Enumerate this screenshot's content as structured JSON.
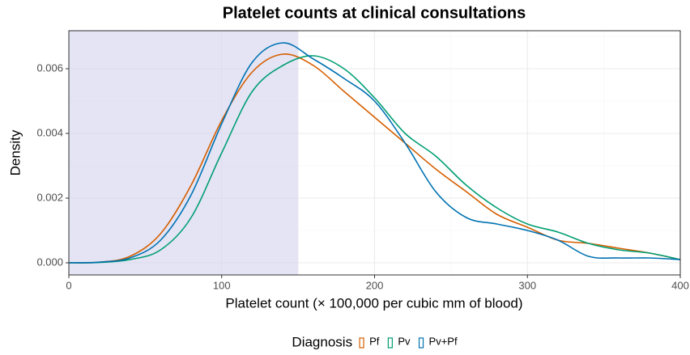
{
  "chart_data": {
    "type": "line",
    "title": "Platelet counts at clinical consultations",
    "x_label": "Platelet count (× 100,000 per cubic mm of blood)",
    "y_label": "Density",
    "legend_title": "Diagnosis",
    "legend_position": "bottom",
    "grid": true,
    "shaded_region": {
      "xmin": 0,
      "xmax": 150,
      "color": "#d6d6ee"
    },
    "xlim": [
      0,
      400
    ],
    "ylim": [
      -0.000375,
      0.007175
    ],
    "xticks": [
      0,
      100,
      200,
      300,
      400
    ],
    "yticks": [
      {
        "value": 0,
        "label": "0.000"
      },
      {
        "value": 0.002,
        "label": "0.002"
      },
      {
        "value": 0.004,
        "label": "0.004"
      },
      {
        "value": 0.006,
        "label": "0.006"
      }
    ],
    "x": [
      0,
      20,
      40,
      60,
      80,
      100,
      120,
      140,
      160,
      180,
      200,
      220,
      240,
      260,
      280,
      300,
      320,
      340,
      360,
      380,
      400
    ],
    "series": [
      {
        "name": "Pf",
        "color": "#D55E00",
        "values": [
          0,
          2e-05,
          0.0002,
          0.0009,
          0.0024,
          0.0044,
          0.0059,
          0.00645,
          0.0061,
          0.0053,
          0.0045,
          0.0037,
          0.0029,
          0.0022,
          0.0015,
          0.0011,
          0.0007,
          0.0006,
          0.00045,
          0.0003,
          0.0001
        ]
      },
      {
        "name": "Pv",
        "color": "#009E73",
        "values": [
          0,
          1e-05,
          0.0001,
          0.0004,
          0.0014,
          0.0034,
          0.0053,
          0.0061,
          0.0064,
          0.006,
          0.0051,
          0.004,
          0.0033,
          0.0024,
          0.0017,
          0.0012,
          0.00095,
          0.0006,
          0.0004,
          0.0003,
          0.0001
        ]
      },
      {
        "name": "Pv+Pf",
        "color": "#0072B2",
        "values": [
          0,
          2e-05,
          0.00015,
          0.0007,
          0.0021,
          0.0043,
          0.0062,
          0.0068,
          0.0063,
          0.0057,
          0.005,
          0.0037,
          0.0022,
          0.0014,
          0.0012,
          0.001,
          0.0007,
          0.0002,
          0.00015,
          0.00015,
          0.0001
        ]
      }
    ]
  }
}
